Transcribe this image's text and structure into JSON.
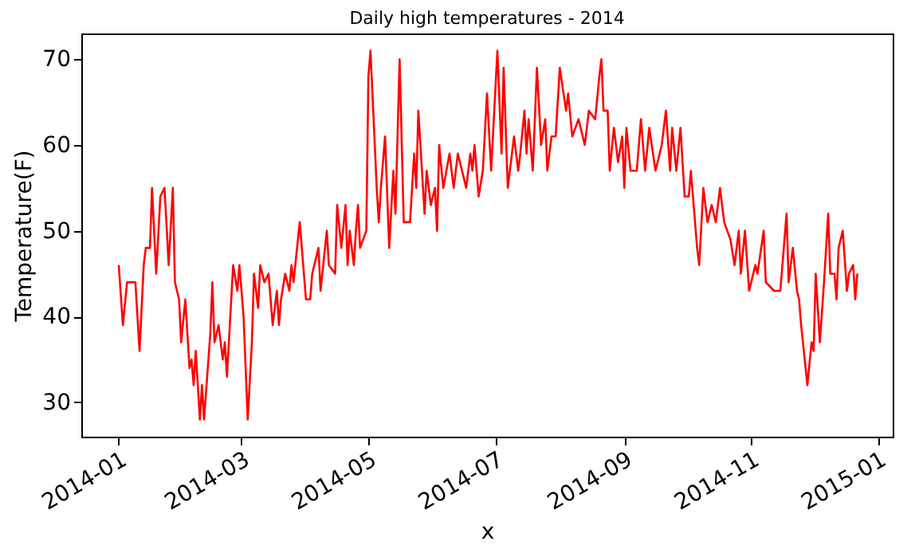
{
  "chart_data": {
    "type": "line",
    "title": "Daily high temperatures - 2014",
    "xlabel": "x",
    "ylabel": "Temperature(F)",
    "xlim": [
      "2013-12-14",
      "2015-01-08"
    ],
    "xticks": [
      "2014-01",
      "2014-03",
      "2014-05",
      "2014-07",
      "2014-09",
      "2014-11",
      "2015-01"
    ],
    "ylim": [
      26,
      73
    ],
    "yticks": [
      30,
      40,
      50,
      60,
      70
    ],
    "grid": false,
    "legend": false,
    "marker": "none",
    "line_style": "solid",
    "series": [
      {
        "color": "#ff0000",
        "x": [
          "2014-01-01",
          "2014-01-03",
          "2014-01-05",
          "2014-01-09",
          "2014-01-11",
          "2014-01-13",
          "2014-01-14",
          "2014-01-16",
          "2014-01-17",
          "2014-01-19",
          "2014-01-21",
          "2014-01-23",
          "2014-01-25",
          "2014-01-27",
          "2014-01-28",
          "2014-01-30",
          "2014-01-31",
          "2014-02-02",
          "2014-02-04",
          "2014-02-05",
          "2014-02-06",
          "2014-02-07",
          "2014-02-09",
          "2014-02-10",
          "2014-02-11",
          "2014-02-14",
          "2014-02-15",
          "2014-02-16",
          "2014-02-18",
          "2014-02-20",
          "2014-02-21",
          "2014-02-22",
          "2014-02-25",
          "2014-02-27",
          "2014-02-28",
          "2014-03-02",
          "2014-03-04",
          "2014-03-06",
          "2014-03-07",
          "2014-03-09",
          "2014-03-10",
          "2014-03-12",
          "2014-03-14",
          "2014-03-16",
          "2014-03-18",
          "2014-03-19",
          "2014-03-20",
          "2014-03-22",
          "2014-03-24",
          "2014-03-25",
          "2014-03-26",
          "2014-03-29",
          "2014-03-30",
          "2014-04-01",
          "2014-04-03",
          "2014-04-04",
          "2014-04-07",
          "2014-04-08",
          "2014-04-11",
          "2014-04-12",
          "2014-04-15",
          "2014-04-16",
          "2014-04-18",
          "2014-04-20",
          "2014-04-21",
          "2014-04-22",
          "2014-04-24",
          "2014-04-25",
          "2014-04-26",
          "2014-04-27",
          "2014-04-30",
          "2014-05-01",
          "2014-05-02",
          "2014-05-05",
          "2014-05-06",
          "2014-05-07",
          "2014-05-09",
          "2014-05-11",
          "2014-05-13",
          "2014-05-14",
          "2014-05-16",
          "2014-05-18",
          "2014-05-21",
          "2014-05-23",
          "2014-05-24",
          "2014-05-25",
          "2014-05-28",
          "2014-05-29",
          "2014-05-31",
          "2014-06-02",
          "2014-06-03",
          "2014-06-04",
          "2014-06-06",
          "2014-06-09",
          "2014-06-11",
          "2014-06-13",
          "2014-06-15",
          "2014-06-17",
          "2014-06-19",
          "2014-06-20",
          "2014-06-21",
          "2014-06-23",
          "2014-06-25",
          "2014-06-27",
          "2014-06-29",
          "2014-07-02",
          "2014-07-04",
          "2014-07-05",
          "2014-07-07",
          "2014-07-10",
          "2014-07-12",
          "2014-07-13",
          "2014-07-15",
          "2014-07-16",
          "2014-07-17",
          "2014-07-19",
          "2014-07-21",
          "2014-07-23",
          "2014-07-25",
          "2014-07-26",
          "2014-07-28",
          "2014-07-30",
          "2014-08-01",
          "2014-08-04",
          "2014-08-05",
          "2014-08-07",
          "2014-08-10",
          "2014-08-13",
          "2014-08-15",
          "2014-08-18",
          "2014-08-20",
          "2014-08-21",
          "2014-08-22",
          "2014-08-24",
          "2014-08-25",
          "2014-08-27",
          "2014-08-29",
          "2014-08-31",
          "2014-09-01",
          "2014-09-02",
          "2014-09-04",
          "2014-09-07",
          "2014-09-09",
          "2014-09-11",
          "2014-09-13",
          "2014-09-16",
          "2014-09-19",
          "2014-09-21",
          "2014-09-23",
          "2014-09-24",
          "2014-09-26",
          "2014-09-28",
          "2014-09-30",
          "2014-10-02",
          "2014-10-03",
          "2014-10-06",
          "2014-10-07",
          "2014-10-09",
          "2014-10-11",
          "2014-10-13",
          "2014-10-15",
          "2014-10-17",
          "2014-10-19",
          "2014-10-22",
          "2014-10-24",
          "2014-10-26",
          "2014-10-27",
          "2014-10-29",
          "2014-10-31",
          "2014-11-03",
          "2014-11-04",
          "2014-11-07",
          "2014-11-08",
          "2014-11-12",
          "2014-11-15",
          "2014-11-18",
          "2014-11-19",
          "2014-11-21",
          "2014-11-23",
          "2014-11-24",
          "2014-11-25",
          "2014-11-28",
          "2014-11-30",
          "2014-12-01",
          "2014-12-02",
          "2014-12-04",
          "2014-12-06",
          "2014-12-08",
          "2014-12-09",
          "2014-12-11",
          "2014-12-12",
          "2014-12-13",
          "2014-12-15",
          "2014-12-17",
          "2014-12-18",
          "2014-12-20",
          "2014-12-21",
          "2014-12-22"
        ],
        "values": [
          46,
          39,
          44,
          44,
          36,
          46,
          48,
          48,
          55,
          45,
          54,
          55,
          46,
          55,
          44,
          42,
          37,
          42,
          34,
          35,
          32,
          36,
          28,
          32,
          28,
          38,
          44,
          37,
          39,
          35,
          37,
          33,
          46,
          43,
          46,
          40,
          28,
          37,
          45,
          41,
          46,
          44,
          45,
          39,
          43,
          39,
          42,
          45,
          43,
          46,
          44,
          51,
          48,
          42,
          42,
          45,
          48,
          43,
          50,
          46,
          45,
          53,
          48,
          53,
          46,
          50,
          46,
          50,
          53,
          48,
          50,
          68,
          71,
          55,
          51,
          55,
          61,
          48,
          57,
          52,
          70,
          51,
          51,
          59,
          55,
          64,
          52,
          57,
          53,
          55,
          50,
          60,
          55,
          59,
          55,
          59,
          57,
          55,
          59,
          57,
          60,
          54,
          57,
          66,
          57,
          71,
          59,
          69,
          55,
          61,
          57,
          59,
          64,
          59,
          63,
          57,
          69,
          60,
          63,
          57,
          61,
          61,
          69,
          64,
          66,
          61,
          63,
          60,
          64,
          63,
          68,
          70,
          64,
          64,
          57,
          62,
          58,
          61,
          55,
          62,
          57,
          57,
          63,
          57,
          62,
          57,
          60,
          64,
          57,
          62,
          57,
          62,
          54,
          54,
          57,
          48,
          46,
          55,
          51,
          53,
          51,
          55,
          51,
          49,
          46,
          50,
          45,
          50,
          43,
          46,
          45,
          50,
          44,
          43,
          43,
          52,
          44,
          48,
          43,
          42,
          39,
          32,
          37,
          36,
          45,
          37,
          44,
          52,
          45,
          45,
          42,
          48,
          50,
          43,
          45,
          46,
          42,
          45
        ]
      }
    ]
  }
}
